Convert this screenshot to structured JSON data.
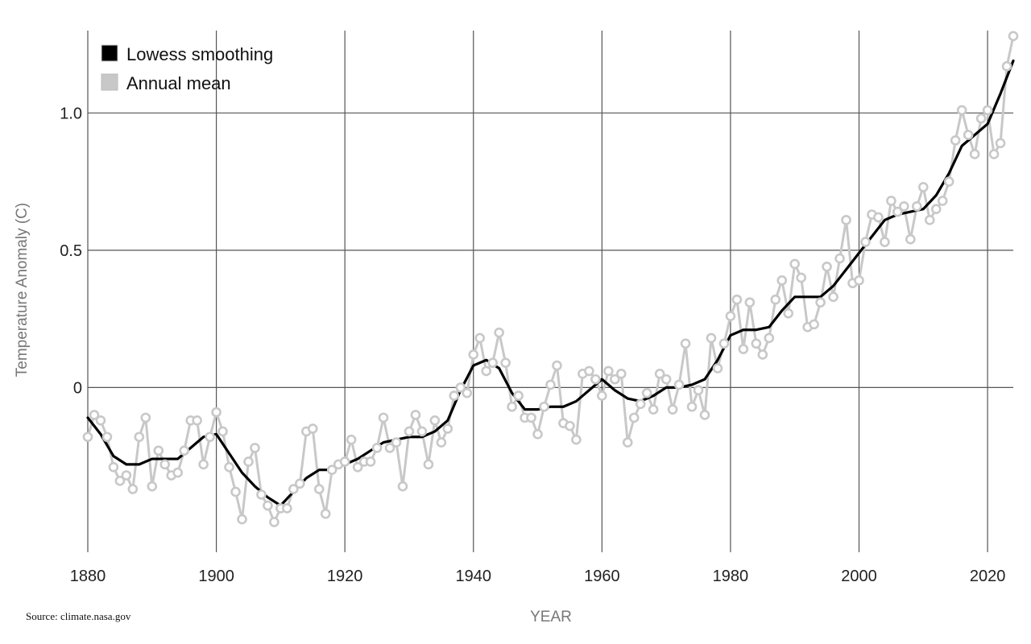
{
  "source_label": "Source: climate.nasa.gov",
  "colors": {
    "annual": "#c8c8c8",
    "lowess": "#000000",
    "grid": "#555555"
  },
  "chart_data": {
    "type": "line",
    "xlabel": "YEAR",
    "ylabel": "Temperature Anomaly (C)",
    "xlim": [
      1880,
      2024
    ],
    "ylim": [
      -0.6,
      1.3
    ],
    "x_ticks": [
      1880,
      1900,
      1920,
      1940,
      1960,
      1980,
      2000,
      2020
    ],
    "x_tick_labels": [
      "1880",
      "1900",
      "1920",
      "1940",
      "1960",
      "1980",
      "2000",
      "2020"
    ],
    "y_ticks": [
      0,
      0.5,
      1.0
    ],
    "y_tick_labels": [
      "0",
      "0.5",
      "1.0"
    ],
    "grid": true,
    "legend": {
      "position": "top-left",
      "entries": [
        {
          "label": "Lowess smoothing",
          "color": "#000000"
        },
        {
          "label": "Annual mean",
          "color": "#c8c8c8"
        }
      ]
    },
    "series": [
      {
        "name": "Annual mean",
        "x": [
          1880,
          1881,
          1882,
          1883,
          1884,
          1885,
          1886,
          1887,
          1888,
          1889,
          1890,
          1891,
          1892,
          1893,
          1894,
          1895,
          1896,
          1897,
          1898,
          1899,
          1900,
          1901,
          1902,
          1903,
          1904,
          1905,
          1906,
          1907,
          1908,
          1909,
          1910,
          1911,
          1912,
          1913,
          1914,
          1915,
          1916,
          1917,
          1918,
          1919,
          1920,
          1921,
          1922,
          1923,
          1924,
          1925,
          1926,
          1927,
          1928,
          1929,
          1930,
          1931,
          1932,
          1933,
          1934,
          1935,
          1936,
          1937,
          1938,
          1939,
          1940,
          1941,
          1942,
          1943,
          1944,
          1945,
          1946,
          1947,
          1948,
          1949,
          1950,
          1951,
          1952,
          1953,
          1954,
          1955,
          1956,
          1957,
          1958,
          1959,
          1960,
          1961,
          1962,
          1963,
          1964,
          1965,
          1966,
          1967,
          1968,
          1969,
          1970,
          1971,
          1972,
          1973,
          1974,
          1975,
          1976,
          1977,
          1978,
          1979,
          1980,
          1981,
          1982,
          1983,
          1984,
          1985,
          1986,
          1987,
          1988,
          1989,
          1990,
          1991,
          1992,
          1993,
          1994,
          1995,
          1996,
          1997,
          1998,
          1999,
          2000,
          2001,
          2002,
          2003,
          2004,
          2005,
          2006,
          2007,
          2008,
          2009,
          2010,
          2011,
          2012,
          2013,
          2014,
          2015,
          2016,
          2017,
          2018,
          2019,
          2020,
          2021,
          2022,
          2023,
          2024
        ],
        "values": [
          -0.18,
          -0.1,
          -0.12,
          -0.18,
          -0.29,
          -0.34,
          -0.32,
          -0.37,
          -0.18,
          -0.11,
          -0.36,
          -0.23,
          -0.28,
          -0.32,
          -0.31,
          -0.23,
          -0.12,
          -0.12,
          -0.28,
          -0.18,
          -0.09,
          -0.16,
          -0.29,
          -0.38,
          -0.48,
          -0.27,
          -0.22,
          -0.39,
          -0.43,
          -0.49,
          -0.44,
          -0.44,
          -0.37,
          -0.35,
          -0.16,
          -0.15,
          -0.37,
          -0.46,
          -0.3,
          -0.28,
          -0.27,
          -0.19,
          -0.29,
          -0.27,
          -0.27,
          -0.22,
          -0.11,
          -0.22,
          -0.2,
          -0.36,
          -0.16,
          -0.1,
          -0.16,
          -0.28,
          -0.12,
          -0.2,
          -0.15,
          -0.03,
          0.0,
          -0.02,
          0.12,
          0.18,
          0.06,
          0.09,
          0.2,
          0.09,
          -0.07,
          -0.03,
          -0.11,
          -0.11,
          -0.17,
          -0.07,
          0.01,
          0.08,
          -0.13,
          -0.14,
          -0.19,
          0.05,
          0.06,
          0.03,
          -0.03,
          0.06,
          0.03,
          0.05,
          -0.2,
          -0.11,
          -0.06,
          -0.02,
          -0.08,
          0.05,
          0.03,
          -0.08,
          0.01,
          0.16,
          -0.07,
          -0.01,
          -0.1,
          0.18,
          0.07,
          0.16,
          0.26,
          0.32,
          0.14,
          0.31,
          0.16,
          0.12,
          0.18,
          0.32,
          0.39,
          0.27,
          0.45,
          0.4,
          0.22,
          0.23,
          0.31,
          0.44,
          0.33,
          0.47,
          0.61,
          0.38,
          0.39,
          0.53,
          0.63,
          0.62,
          0.53,
          0.68,
          0.64,
          0.66,
          0.54,
          0.66,
          0.73,
          0.61,
          0.65,
          0.68,
          0.75,
          0.9,
          1.01,
          0.92,
          0.85,
          0.98,
          1.01,
          0.85,
          0.89,
          1.17,
          1.28
        ]
      },
      {
        "name": "Lowess smoothing",
        "x": [
          1880,
          1882,
          1884,
          1886,
          1888,
          1890,
          1892,
          1894,
          1896,
          1898,
          1900,
          1902,
          1904,
          1906,
          1908,
          1910,
          1912,
          1914,
          1916,
          1918,
          1920,
          1922,
          1924,
          1926,
          1928,
          1930,
          1932,
          1934,
          1936,
          1938,
          1940,
          1942,
          1944,
          1946,
          1948,
          1950,
          1952,
          1954,
          1956,
          1958,
          1960,
          1962,
          1964,
          1966,
          1968,
          1970,
          1972,
          1974,
          1976,
          1978,
          1980,
          1982,
          1984,
          1986,
          1988,
          1990,
          1992,
          1994,
          1996,
          1998,
          2000,
          2002,
          2004,
          2006,
          2008,
          2010,
          2012,
          2014,
          2016,
          2018,
          2020,
          2022,
          2024
        ],
        "values": [
          -0.11,
          -0.17,
          -0.25,
          -0.28,
          -0.28,
          -0.26,
          -0.26,
          -0.26,
          -0.22,
          -0.18,
          -0.17,
          -0.24,
          -0.31,
          -0.36,
          -0.4,
          -0.43,
          -0.38,
          -0.33,
          -0.3,
          -0.3,
          -0.28,
          -0.26,
          -0.23,
          -0.2,
          -0.19,
          -0.18,
          -0.18,
          -0.16,
          -0.12,
          -0.01,
          0.08,
          0.1,
          0.07,
          -0.02,
          -0.08,
          -0.08,
          -0.07,
          -0.07,
          -0.05,
          -0.01,
          0.03,
          -0.01,
          -0.04,
          -0.05,
          -0.03,
          0.0,
          0.0,
          0.01,
          0.03,
          0.1,
          0.19,
          0.21,
          0.21,
          0.22,
          0.28,
          0.33,
          0.33,
          0.33,
          0.37,
          0.43,
          0.49,
          0.55,
          0.61,
          0.63,
          0.64,
          0.65,
          0.7,
          0.78,
          0.88,
          0.92,
          0.96,
          1.07,
          1.19
        ]
      }
    ]
  }
}
